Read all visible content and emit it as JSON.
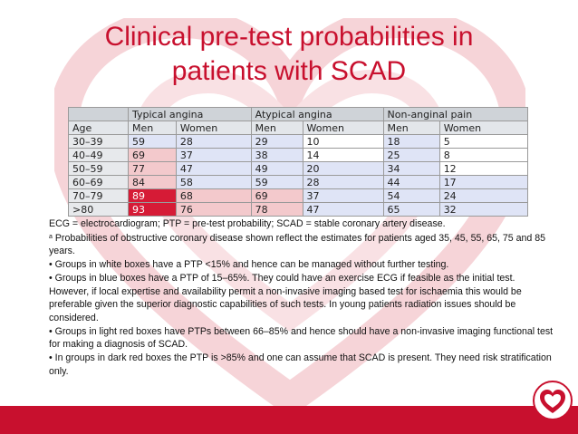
{
  "title": {
    "line1": "Clinical pre-test probabilities in",
    "line2": "patients with SCAD"
  },
  "table": {
    "group_headers": [
      "Typical angina",
      "Atypical angina",
      "Non-anginal pain"
    ],
    "sub_headers": [
      "Age",
      "Men",
      "Women",
      "Men",
      "Women",
      "Men",
      "Women"
    ],
    "rows": [
      {
        "age": "30–39",
        "cells": [
          "59",
          "28",
          "29",
          "10",
          "18",
          "5"
        ]
      },
      {
        "age": "40–49",
        "cells": [
          "69",
          "37",
          "38",
          "14",
          "25",
          "8"
        ]
      },
      {
        "age": "50–59",
        "cells": [
          "77",
          "47",
          "49",
          "20",
          "34",
          "12"
        ]
      },
      {
        "age": "60–69",
        "cells": [
          "84",
          "58",
          "59",
          "28",
          "44",
          "17"
        ]
      },
      {
        "age": "70–79",
        "cells": [
          "89",
          "68",
          "69",
          "37",
          "54",
          "24"
        ]
      },
      {
        "age": ">80",
        "cells": [
          "93",
          "76",
          "78",
          "47",
          "65",
          "32"
        ]
      }
    ],
    "cell_colors": {
      "white": "#ffffff",
      "blue": "#dfe4f6",
      "light_red": "#f3c9cc",
      "dark_red": "#d61b36"
    }
  },
  "notes": {
    "abbrev": "ECG = electrocardiogram; PTP = pre-test probability; SCAD = stable coronary artery disease.",
    "footnote_mark": "a",
    "footnote": " Probabilities of obstructive coronary disease shown reflect the estimates for patients aged 35, 45, 55, 65, 75 and 85 years.",
    "bullet1": "• Groups in white boxes have a PTP <15% and hence can be managed without further testing.",
    "bullet2": "• Groups in blue boxes have a PTP of 15–65%. They could have an exercise ECG if feasible as the initial test. However, if local expertise and availability permit a non-invasive imaging based test for ischaemia this would be preferable given the superior diagnostic capabilities of such tests. In young patients radiation issues should be considered.",
    "bullet3": "• Groups in light red boxes have PTPs between 66–85% and hence should have a non-invasive imaging functional test for making a diagnosis of SCAD.",
    "bullet4": "• In groups in dark red boxes the PTP is >85% and one can assume that SCAD is present. They need risk stratification only."
  },
  "icons": {
    "watermark": "heart-watermark-icon",
    "logo": "esc-heart-logo-icon"
  },
  "colors": {
    "accent": "#c8102e"
  }
}
